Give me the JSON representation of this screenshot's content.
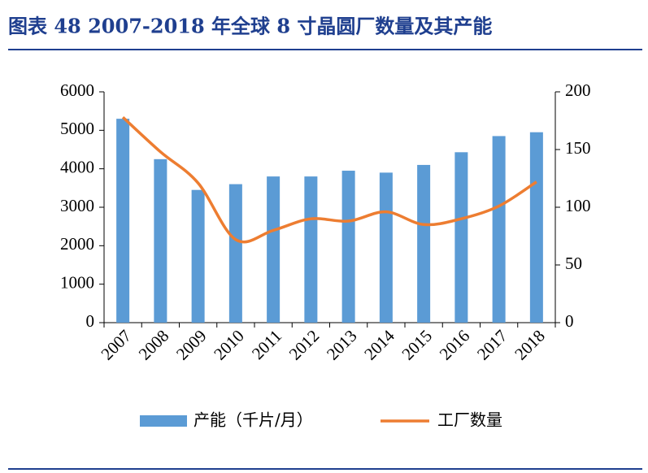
{
  "chart_data": {
    "type": "bar-line",
    "title": "图表 48   2007-2018 年全球 8 寸晶圆厂数量及其产能",
    "categories": [
      "2007",
      "2008",
      "2009",
      "2010",
      "2011",
      "2012",
      "2013",
      "2014",
      "2015",
      "2016",
      "2017",
      "2018"
    ],
    "series": [
      {
        "name": "产能（千片/月）",
        "type": "bar",
        "color": "#5b9bd5",
        "values": [
          5300,
          4250,
          3450,
          3600,
          3800,
          3800,
          3950,
          3900,
          4100,
          4430,
          4850,
          4950
        ]
      },
      {
        "name": "工厂数量",
        "type": "line",
        "axis": "y2",
        "color": "#ed7d31",
        "values": [
          178,
          148,
          121,
          72,
          80,
          90,
          88,
          96,
          85,
          90,
          101,
          122
        ]
      }
    ],
    "ylim": [
      0,
      6000
    ],
    "yticks": [
      0,
      1000,
      2000,
      3000,
      4000,
      5000,
      6000
    ],
    "y2lim": [
      0,
      200
    ],
    "y2ticks": [
      0,
      50,
      100,
      150,
      200
    ],
    "grid": false,
    "legend": "bottom"
  }
}
